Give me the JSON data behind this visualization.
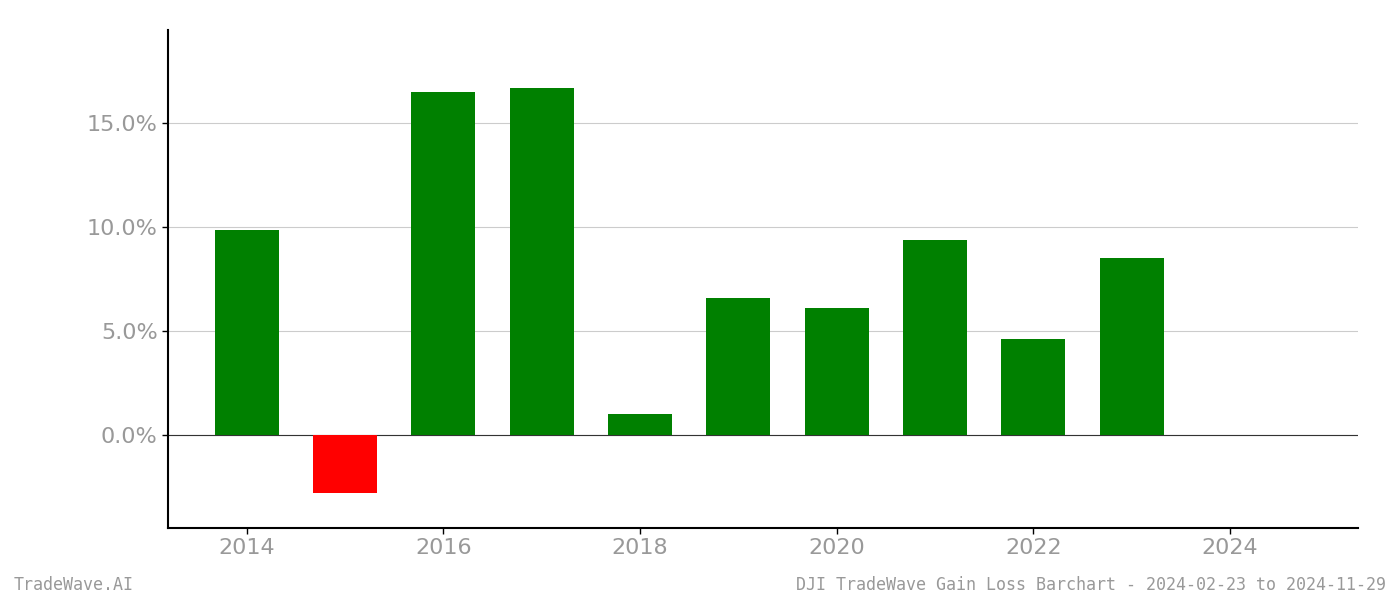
{
  "years": [
    2014,
    2015,
    2016,
    2017,
    2018,
    2019,
    2020,
    2021,
    2022,
    2023
  ],
  "values": [
    9.85,
    -2.8,
    16.5,
    16.7,
    1.0,
    6.6,
    6.1,
    9.4,
    4.6,
    8.5
  ],
  "bar_colors": [
    "#008000",
    "#ff0000",
    "#008000",
    "#008000",
    "#008000",
    "#008000",
    "#008000",
    "#008000",
    "#008000",
    "#008000"
  ],
  "title": "DJI TradeWave Gain Loss Barchart - 2024-02-23 to 2024-11-29",
  "watermark": "TradeWave.AI",
  "background_color": "#ffffff",
  "grid_color": "#cccccc",
  "axis_color": "#999999",
  "spine_color": "#000000",
  "xlim": [
    2013.2,
    2025.3
  ],
  "ylim": [
    -4.5,
    19.5
  ],
  "yticks": [
    0.0,
    5.0,
    10.0,
    15.0
  ],
  "ytick_labels": [
    "0.0%",
    "5.0%",
    "10.0%",
    "15.0%"
  ],
  "xticks": [
    2014,
    2016,
    2018,
    2020,
    2022,
    2024
  ],
  "bar_width": 0.65,
  "tick_fontsize": 16,
  "label_fontsize": 12
}
